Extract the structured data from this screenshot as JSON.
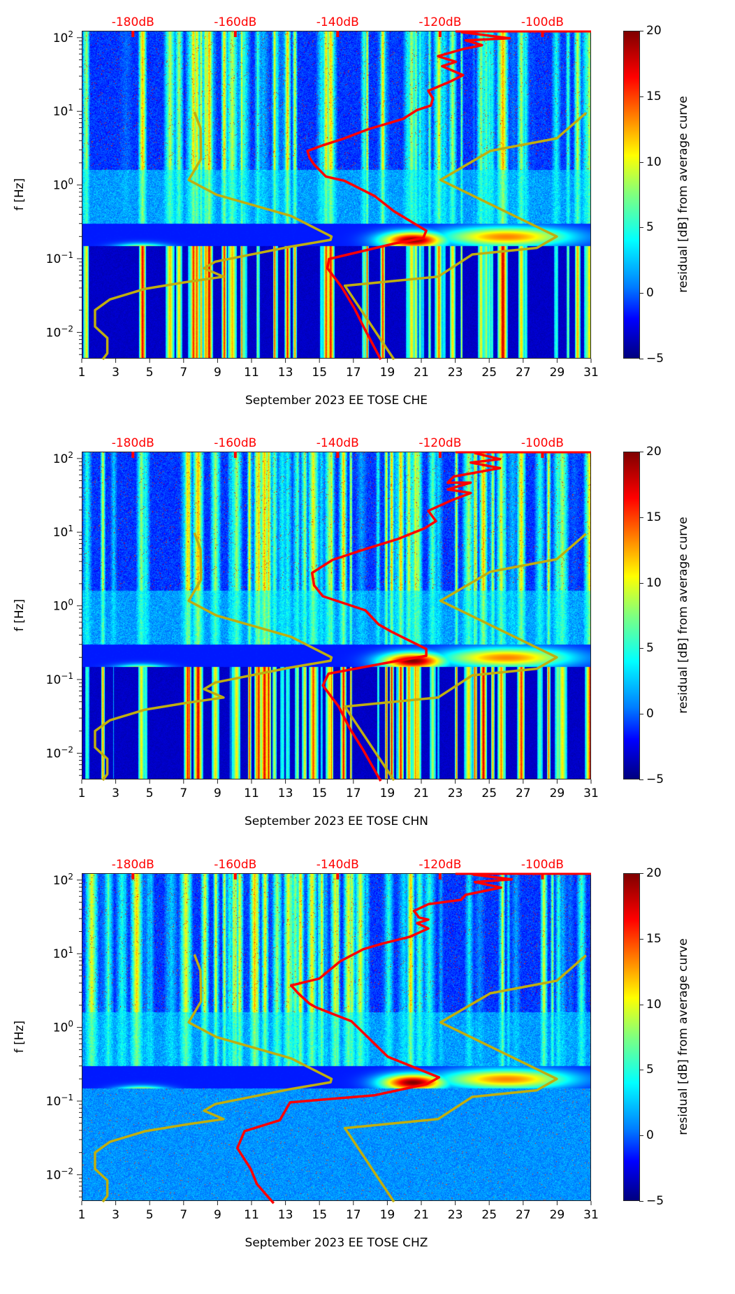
{
  "chart_data": {
    "type": "heatmap",
    "layout": "3 vertically stacked spectrogram panels with shared colorbar style",
    "x_axis": {
      "ticks": [
        "1",
        "3",
        "5",
        "7",
        "9",
        "11",
        "13",
        "15",
        "17",
        "19",
        "21",
        "23",
        "25",
        "27",
        "29",
        "31"
      ],
      "range": [
        1,
        31
      ],
      "unit": "day of month"
    },
    "y_axis": {
      "label": "f [Hz]",
      "scale": "log",
      "range": [
        0.0044,
        124
      ],
      "ticks": [
        {
          "exp": "2",
          "value": 100
        },
        {
          "exp": "1",
          "value": 10
        },
        {
          "exp": "0",
          "value": 1
        },
        {
          "exp": "−1",
          "value": 0.1
        },
        {
          "exp": "−2",
          "value": 0.01
        }
      ]
    },
    "top_axis": {
      "unit": "dB",
      "range": [
        -190,
        -90.5
      ],
      "ticks": [
        "-180dB",
        "-160dB",
        "-140dB",
        "-120dB",
        "-100dB"
      ],
      "tick_values": [
        -180,
        -160,
        -140,
        -120,
        -100
      ],
      "color": "#ff0000"
    },
    "colorbar": {
      "label": "residual [dB] from average curve",
      "range": [
        -5,
        20
      ],
      "ticks": [
        "20",
        "15",
        "10",
        "5",
        "0",
        "−5"
      ],
      "tick_values": [
        20,
        15,
        10,
        5,
        0,
        -5
      ],
      "colormap": "jet"
    },
    "reference_curves": {
      "color": "#bfae10",
      "low_noise_model": [
        [
          -168.0,
          9.8
        ],
        [
          -166.8,
          5.9
        ],
        [
          -166.7,
          2.25
        ],
        [
          -169.1,
          1.17
        ],
        [
          -163.7,
          0.74
        ],
        [
          -149.1,
          0.38
        ],
        [
          -141.2,
          0.2
        ],
        [
          -141.4,
          0.18
        ],
        [
          -149.3,
          0.145
        ],
        [
          -163.9,
          0.091
        ],
        [
          -166.1,
          0.074
        ],
        [
          -162.3,
          0.057
        ],
        [
          -169.7,
          0.048
        ],
        [
          -177.6,
          0.039
        ],
        [
          -184.5,
          0.028
        ],
        [
          -187.4,
          0.02
        ],
        [
          -187.4,
          0.012
        ],
        [
          -185.0,
          0.0084
        ],
        [
          -185.0,
          0.0052
        ],
        [
          -185.9,
          0.0043
        ]
      ],
      "high_noise_model": [
        [
          -91.5,
          9.5
        ],
        [
          -97.2,
          4.3
        ],
        [
          -110.2,
          2.9
        ],
        [
          -119.9,
          1.17
        ],
        [
          -97.2,
          0.2
        ],
        [
          -101.1,
          0.14
        ],
        [
          -113.7,
          0.114
        ],
        [
          -120.4,
          0.057
        ],
        [
          -138.6,
          0.043
        ],
        [
          -129.0,
          0.0043
        ]
      ]
    },
    "panels": [
      {
        "xlabel": "September 2023 EE TOSE  CHE",
        "average_curve_color": "#ff0000",
        "average_curve": [
          [
            -115.9,
            119
          ],
          [
            -106.4,
            98
          ],
          [
            -115.0,
            92
          ],
          [
            -111.8,
            79
          ],
          [
            -115.5,
            70
          ],
          [
            -120.4,
            56
          ],
          [
            -116.9,
            47
          ],
          [
            -119.6,
            41
          ],
          [
            -115.5,
            31
          ],
          [
            -118.2,
            25
          ],
          [
            -122.3,
            19
          ],
          [
            -121.4,
            15
          ],
          [
            -121.8,
            12
          ],
          [
            -124.5,
            10.4
          ],
          [
            -127.2,
            7.9
          ],
          [
            -134.1,
            5.7
          ],
          [
            -138.7,
            4.3
          ],
          [
            -143.2,
            3.4
          ],
          [
            -145.9,
            2.9
          ],
          [
            -145.5,
            2.35
          ],
          [
            -144.6,
            1.9
          ],
          [
            -142.3,
            1.3
          ],
          [
            -138.7,
            1.14
          ],
          [
            -132.8,
            0.71
          ],
          [
            -129.0,
            0.44
          ],
          [
            -122.7,
            0.24
          ],
          [
            -123.3,
            0.19
          ],
          [
            -129.0,
            0.16
          ],
          [
            -141.7,
            0.099
          ],
          [
            -142.0,
            0.074
          ],
          [
            -139.2,
            0.041
          ],
          [
            -136.7,
            0.021
          ],
          [
            -134.7,
            0.011
          ],
          [
            -131.6,
            0.0043
          ]
        ],
        "microseism_low_band": true
      },
      {
        "xlabel": "September 2023 EE TOSE  CHN",
        "average_curve_color": "#ff0000",
        "average_curve": [
          [
            -113.3,
            119
          ],
          [
            -108.3,
            98
          ],
          [
            -114.0,
            88
          ],
          [
            -108.3,
            74
          ],
          [
            -117.3,
            57
          ],
          [
            -118.5,
            47
          ],
          [
            -114.0,
            47
          ],
          [
            -118.5,
            38
          ],
          [
            -114.0,
            34
          ],
          [
            -117.8,
            27
          ],
          [
            -122.3,
            19.5
          ],
          [
            -120.8,
            14.1
          ],
          [
            -123.0,
            11.3
          ],
          [
            -128.2,
            8.1
          ],
          [
            -134.6,
            5.9
          ],
          [
            -141.0,
            4.2
          ],
          [
            -145.0,
            2.8
          ],
          [
            -144.6,
            1.9
          ],
          [
            -142.9,
            1.35
          ],
          [
            -134.6,
            0.87
          ],
          [
            -132.0,
            0.56
          ],
          [
            -129.6,
            0.45
          ],
          [
            -122.7,
            0.26
          ],
          [
            -122.7,
            0.21
          ],
          [
            -128.2,
            0.18
          ],
          [
            -141.8,
            0.12
          ],
          [
            -142.9,
            0.083
          ],
          [
            -139.8,
            0.043
          ],
          [
            -137.7,
            0.022
          ],
          [
            -135.0,
            0.011
          ],
          [
            -131.6,
            0.0042
          ]
        ],
        "microseism_low_band": true
      },
      {
        "xlabel": "September 2023 EE TOSE  CHZ",
        "average_curve_color": "#ff0000",
        "average_curve": [
          [
            -113.6,
            119
          ],
          [
            -106.0,
            102
          ],
          [
            -113.2,
            94
          ],
          [
            -108.1,
            79
          ],
          [
            -115.0,
            63
          ],
          [
            -115.9,
            54
          ],
          [
            -122.3,
            47
          ],
          [
            -125.1,
            38
          ],
          [
            -124.1,
            31
          ],
          [
            -122.3,
            29
          ],
          [
            -124.5,
            26
          ],
          [
            -122.3,
            22
          ],
          [
            -125.9,
            17
          ],
          [
            -131.3,
            13.7
          ],
          [
            -135.0,
            11.5
          ],
          [
            -139.5,
            7.9
          ],
          [
            -143.6,
            4.6
          ],
          [
            -149.1,
            3.7
          ],
          [
            -147.7,
            2.9
          ],
          [
            -145.5,
            2.1
          ],
          [
            -144.3,
            1.88
          ],
          [
            -137.3,
            1.21
          ],
          [
            -130.2,
            0.4
          ],
          [
            -120.2,
            0.21
          ],
          [
            -122.6,
            0.17
          ],
          [
            -132.8,
            0.12
          ],
          [
            -149.3,
            0.096
          ],
          [
            -151.3,
            0.055
          ],
          [
            -158.2,
            0.039
          ],
          [
            -159.6,
            0.023
          ],
          [
            -157.0,
            0.012
          ],
          [
            -155.8,
            0.0075
          ],
          [
            -152.5,
            0.0041
          ]
        ],
        "microseism_low_band": false
      }
    ]
  }
}
